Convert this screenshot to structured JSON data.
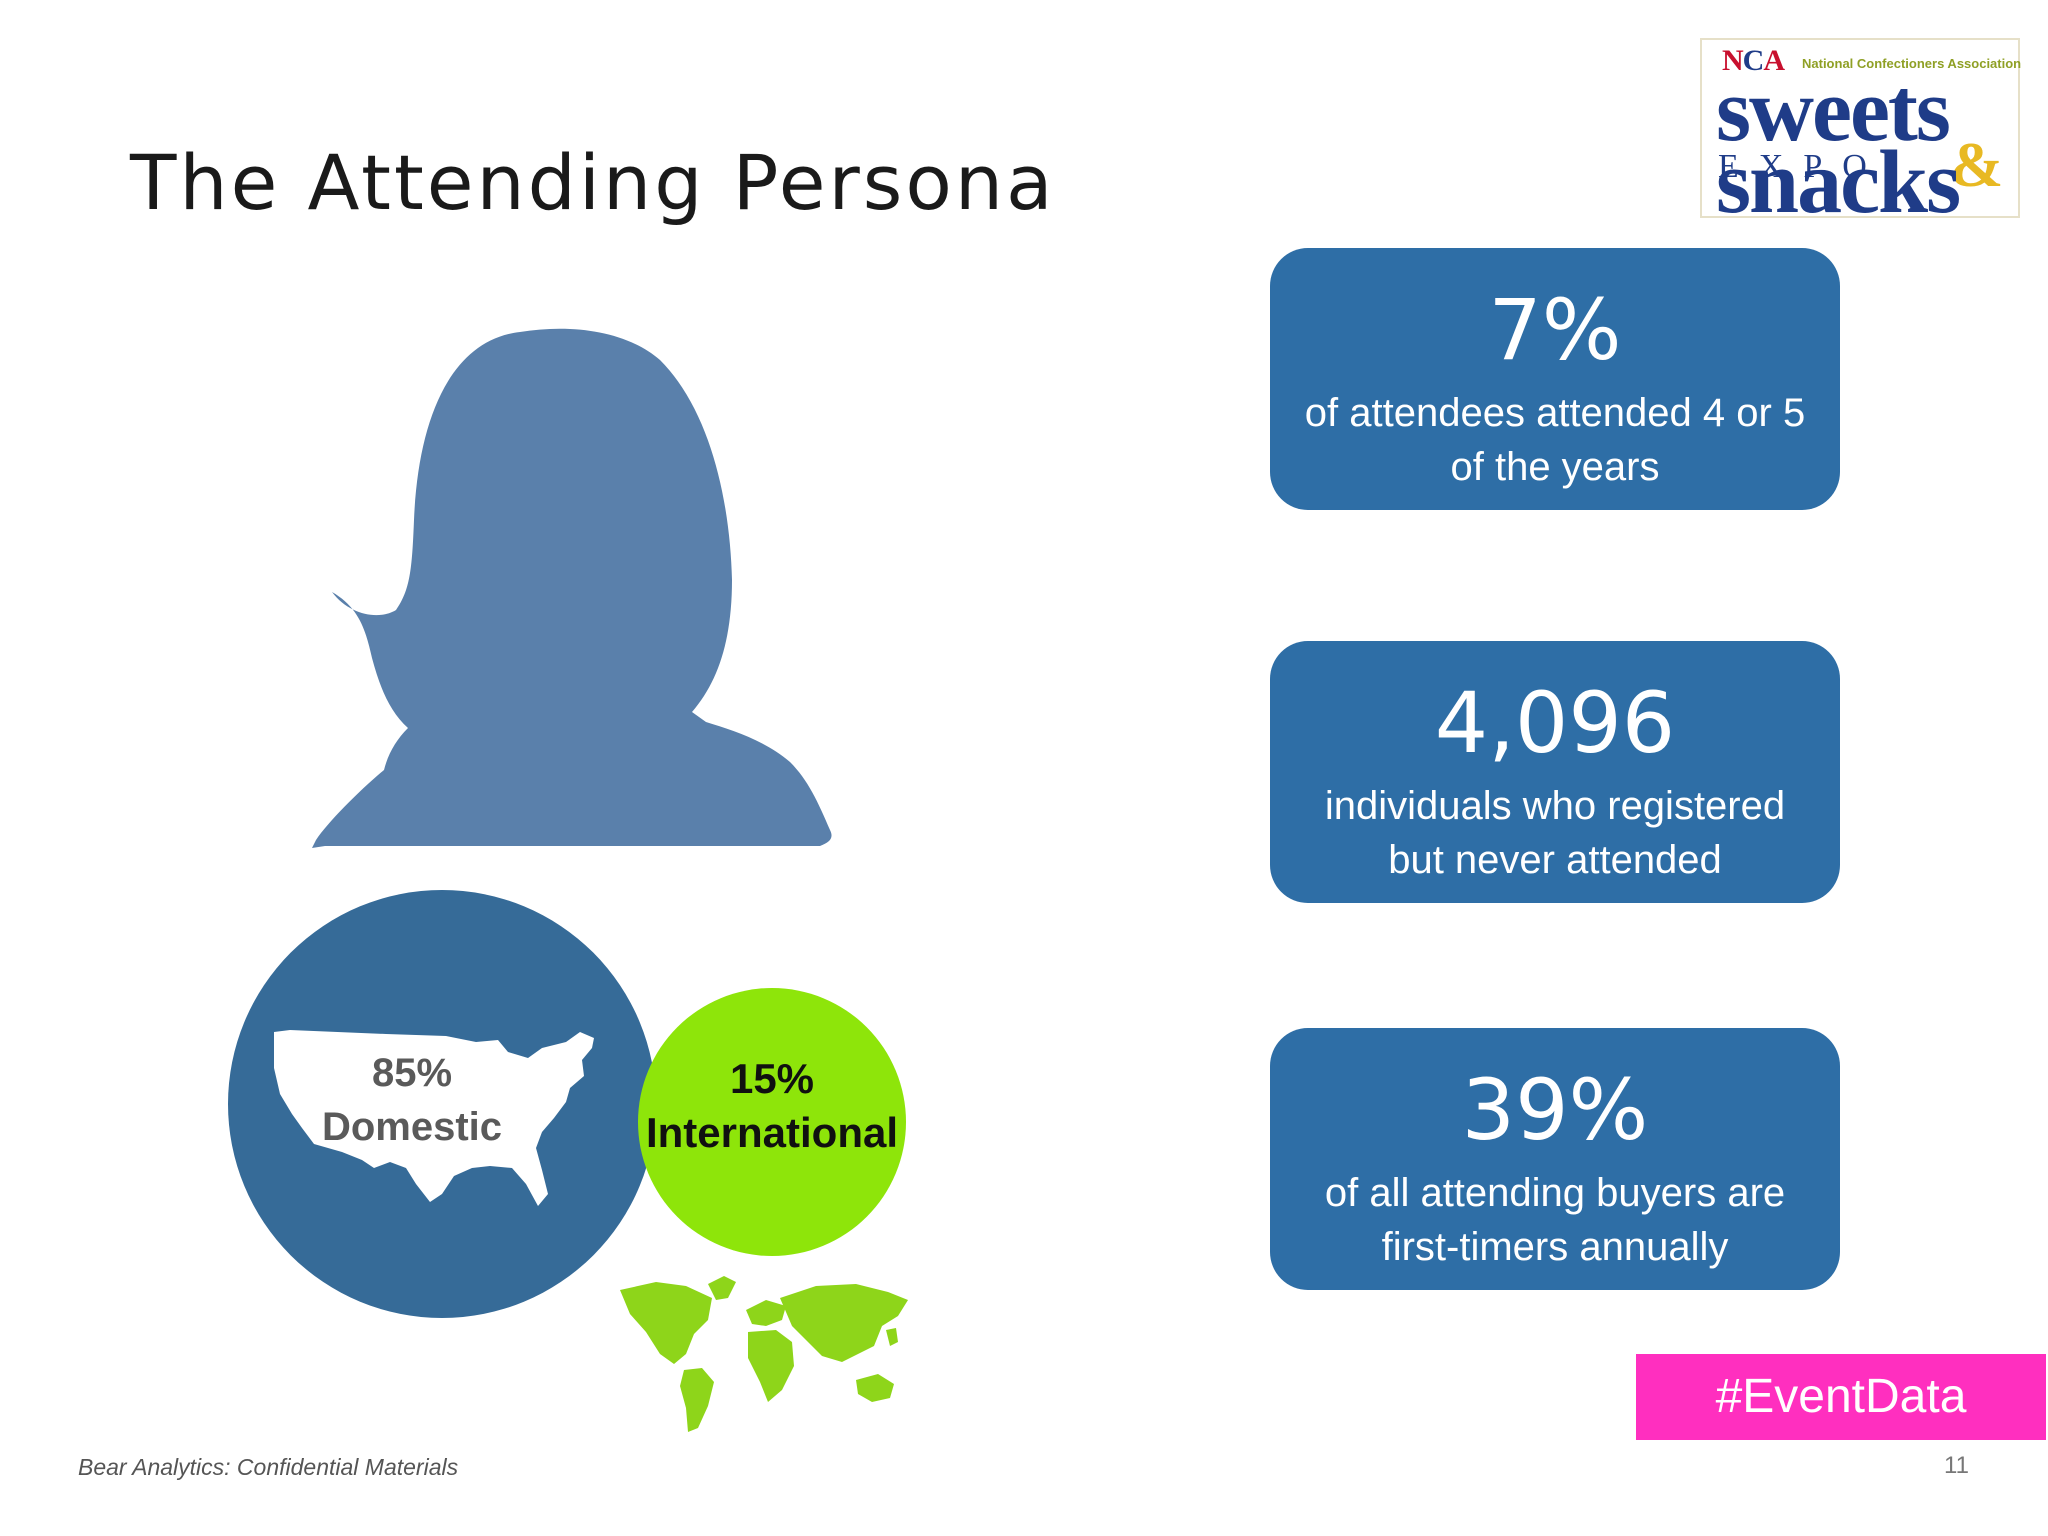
{
  "slide": {
    "title": "The Attending Persona",
    "page_number": "11",
    "footer": "Bear Analytics: Confidential Materials"
  },
  "logo": {
    "nca_n": "N",
    "nca_c": "C",
    "nca_a": "A",
    "association": "National Confectioners Association",
    "line1": "sweets",
    "expo": "EXPO",
    "amp": "&",
    "line2": "snacks"
  },
  "stats": [
    {
      "value": "7%",
      "description": "of attendees attended 4 or 5 of the years"
    },
    {
      "value": "4,096",
      "description": "individuals who registered but never attended"
    },
    {
      "value": "39%",
      "description": "of all attending buyers are first-timers annually"
    }
  ],
  "persona": {
    "domestic": {
      "percent": "85%",
      "label": "Domestic",
      "color": "#366b98"
    },
    "international": {
      "percent": "15%",
      "label": "International",
      "color": "#8ee50a"
    },
    "silhouette_color": "#5a80ab"
  },
  "hashtag": {
    "text": "#EventData",
    "color": "#ff2fbf"
  },
  "colors": {
    "stat_box": "#2e6ea6",
    "title": "#1a1a1a"
  }
}
